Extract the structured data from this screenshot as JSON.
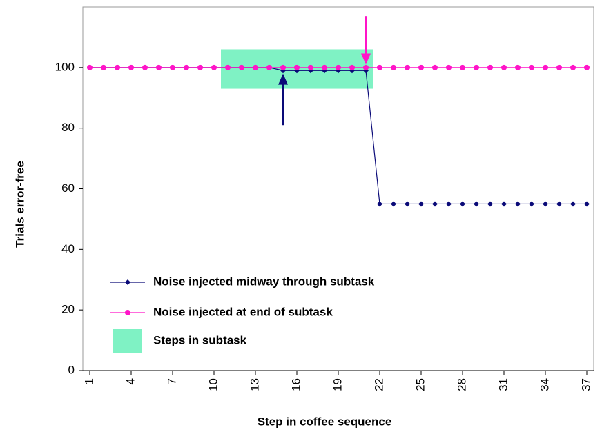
{
  "chart_data": {
    "type": "line",
    "x_label": "Step in coffee sequence",
    "y_label": "Trials error-free",
    "x": [
      1,
      2,
      3,
      4,
      5,
      6,
      7,
      8,
      9,
      10,
      11,
      12,
      13,
      14,
      15,
      16,
      17,
      18,
      19,
      20,
      21,
      22,
      23,
      24,
      25,
      26,
      27,
      28,
      29,
      30,
      31,
      32,
      33,
      34,
      35,
      36,
      37
    ],
    "xlim": [
      0.5,
      37.5
    ],
    "xticks": [
      1,
      4,
      7,
      10,
      13,
      16,
      19,
      22,
      25,
      28,
      31,
      34,
      37
    ],
    "ylim": [
      0,
      120
    ],
    "yticks": [
      0,
      20,
      40,
      60,
      80,
      100
    ],
    "series": [
      {
        "name": "Noise injected midway through subtask",
        "color": "#0a0a78",
        "marker": "diamond",
        "values": [
          100,
          100,
          100,
          100,
          100,
          100,
          100,
          100,
          100,
          100,
          100,
          100,
          100,
          100,
          99,
          99,
          99,
          99,
          99,
          99,
          99,
          55,
          55,
          55,
          55,
          55,
          55,
          55,
          55,
          55,
          55,
          55,
          55,
          55,
          55,
          55,
          55
        ]
      },
      {
        "name": "Noise injected at end of subtask",
        "color": "#ff14c8",
        "marker": "circle",
        "values": [
          100,
          100,
          100,
          100,
          100,
          100,
          100,
          100,
          100,
          100,
          100,
          100,
          100,
          100,
          100,
          100,
          100,
          100,
          100,
          100,
          100,
          100,
          100,
          100,
          100,
          100,
          100,
          100,
          100,
          100,
          100,
          100,
          100,
          100,
          100,
          100,
          100
        ]
      }
    ],
    "highlight": {
      "name": "Steps in subtask",
      "color": "#7ff2c4",
      "x": [
        11,
        21
      ],
      "y": [
        93,
        106
      ]
    },
    "arrows": [
      {
        "x": 15,
        "color": "#0a0a78",
        "direction": "up",
        "y": [
          81,
          98
        ]
      },
      {
        "x": 21,
        "color": "#ff14c8",
        "direction": "down",
        "y": [
          117,
          101
        ]
      }
    ]
  }
}
